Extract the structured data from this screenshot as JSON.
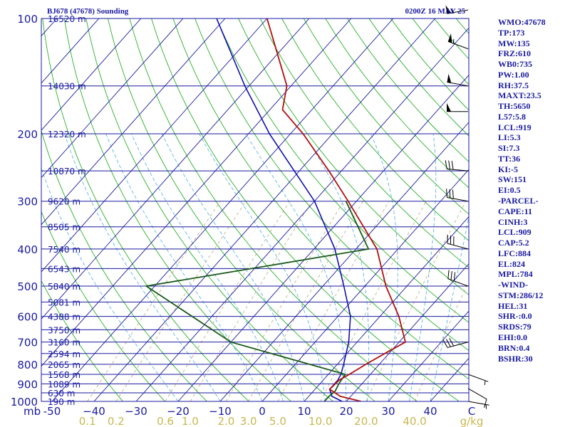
{
  "header": {
    "title": "BJ678 (47678) Sounding",
    "datetime": "0200Z 16 MAY 25"
  },
  "stats": [
    "WMO:47678",
    "TP:173",
    "MW:135",
    "FRZ:610",
    "WB0:735",
    "PW:1.00",
    "RH:37.5",
    "MAXT:23.5",
    "TH:5650",
    "L57:5.8",
    "LCL:919",
    "LI:5.3",
    "SI:7.3",
    "TT:36",
    "KI:-5",
    "SW:151",
    "EI:0.5",
    "-PARCEL-",
    "CAPE:11",
    "CINH:3",
    "LCL:909",
    "CAP:5.2",
    "LFC:884",
    "EL:824",
    "MPL:784",
    "-WIND-",
    "STM:286/12",
    "HEL:31",
    "SHR-:0.0",
    "SRDS:79",
    "EHI:0.0",
    "BRN:0.4",
    "BSHR:30"
  ],
  "colors": {
    "isobar": "#1a1aa0",
    "frame": "#1a1aa0",
    "isotherm": "#1a1aa0",
    "dry_adiabat": "#28b028",
    "moist_adiabat": "#5fb4e8",
    "mixing_ratio": "#b8a878",
    "temperature": "#b01010",
    "dewpoint": "#1a5a1a",
    "wetbulb": "#1010b0",
    "wind_barb": "#000000"
  },
  "chart_data": {
    "type": "skew-t log-p",
    "title": "BJ678 (47678) Sounding",
    "pressure_axis_unit": "mb",
    "pressure_ticks": [
      100,
      200,
      300,
      400,
      500,
      600,
      700,
      800,
      900,
      1000
    ],
    "pressure_tick_labels": [
      "100",
      "200",
      "300",
      "400",
      "500",
      "600",
      "700",
      "800",
      "900",
      "1000"
    ],
    "height_labels": [
      {
        "p": 100,
        "label": "16520 m"
      },
      {
        "p": 150,
        "label": "14030 m"
      },
      {
        "p": 200,
        "label": "12320 m"
      },
      {
        "p": 250,
        "label": "10870 m"
      },
      {
        "p": 300,
        "label": "9620 m"
      },
      {
        "p": 350,
        "label": "8505 m"
      },
      {
        "p": 400,
        "label": "7540 m"
      },
      {
        "p": 450,
        "label": "6543 m"
      },
      {
        "p": 500,
        "label": "5840 m"
      },
      {
        "p": 550,
        "label": "5081 m"
      },
      {
        "p": 600,
        "label": "4388 m"
      },
      {
        "p": 650,
        "label": "3750 m"
      },
      {
        "p": 700,
        "label": "3160 m"
      },
      {
        "p": 750,
        "label": "2594 m"
      },
      {
        "p": 800,
        "label": "2065 m"
      },
      {
        "p": 850,
        "label": "1568 m"
      },
      {
        "p": 900,
        "label": "1089 m"
      },
      {
        "p": 950,
        "label": "630 m"
      },
      {
        "p": 1000,
        "label": "190 m"
      }
    ],
    "temperature_ticks": [
      -50,
      -40,
      -30,
      -20,
      -10,
      0,
      10,
      20,
      30,
      40
    ],
    "temperature_tick_labels": [
      "-50",
      "−40",
      "−30",
      "−20",
      "−10",
      "0",
      "10",
      "20",
      "30",
      "40"
    ],
    "temperature_corner_label": "C",
    "mixing_ratio_ticks": [
      0.1,
      0.2,
      0.6,
      1.0,
      2.0,
      3.0,
      5.0,
      10.0,
      20.0,
      40.0
    ],
    "mixing_ratio_tick_labels": [
      "0.1",
      "0.2",
      "0.6",
      "1.0",
      "2.0",
      "3.0",
      "5.0",
      "10.0",
      "20.0",
      "40.0"
    ],
    "mixing_ratio_unit": "g/kg",
    "temperature_profile": [
      {
        "p": 1000,
        "t": 23.5
      },
      {
        "p": 970,
        "t": 17.5
      },
      {
        "p": 930,
        "t": 13.5
      },
      {
        "p": 880,
        "t": 13.8
      },
      {
        "p": 850,
        "t": 15.0
      },
      {
        "p": 800,
        "t": 16.8
      },
      {
        "p": 750,
        "t": 19.0
      },
      {
        "p": 700,
        "t": 21.5
      },
      {
        "p": 600,
        "t": 14.5
      },
      {
        "p": 500,
        "t": 5.0
      },
      {
        "p": 400,
        "t": -5.0
      },
      {
        "p": 300,
        "t": -22.0
      },
      {
        "p": 250,
        "t": -33.0
      },
      {
        "p": 200,
        "t": -47.0
      },
      {
        "p": 173,
        "t": -57.0
      },
      {
        "p": 150,
        "t": -61.0
      },
      {
        "p": 100,
        "t": -80.0
      }
    ],
    "dewpoint_profile": [
      {
        "p": 1000,
        "t": 14.8
      },
      {
        "p": 970,
        "t": 14.8
      },
      {
        "p": 940,
        "t": 15.2
      },
      {
        "p": 900,
        "t": 14.5
      },
      {
        "p": 850,
        "t": 14.0
      },
      {
        "p": 700,
        "t": -20.0
      },
      {
        "p": 500,
        "t": -52.0
      },
      {
        "p": 400,
        "t": -7.0
      },
      {
        "p": 300,
        "t": -22.5
      }
    ],
    "wetbulb_profile": [
      {
        "p": 1000,
        "t": 19.0
      },
      {
        "p": 970,
        "t": 15.5
      },
      {
        "p": 930,
        "t": 13.5
      },
      {
        "p": 880,
        "t": 13.5
      },
      {
        "p": 850,
        "t": 13.0
      },
      {
        "p": 800,
        "t": 11.5
      },
      {
        "p": 700,
        "t": 8.0
      },
      {
        "p": 600,
        "t": 3.0
      },
      {
        "p": 500,
        "t": -5.0
      },
      {
        "p": 400,
        "t": -15.0
      },
      {
        "p": 300,
        "t": -30.0
      },
      {
        "p": 200,
        "t": -55.0
      },
      {
        "p": 150,
        "t": -71.0
      },
      {
        "p": 100,
        "t": -92.0
      }
    ],
    "wind_barbs": [
      {
        "p": 95,
        "dir": 260,
        "speed_kt": 55
      },
      {
        "p": 120,
        "dir": 290,
        "speed_kt": 55
      },
      {
        "p": 150,
        "dir": 280,
        "speed_kt": 50
      },
      {
        "p": 175,
        "dir": 270,
        "speed_kt": 50
      },
      {
        "p": 250,
        "dir": 275,
        "speed_kt": 30
      },
      {
        "p": 300,
        "dir": 280,
        "speed_kt": 30
      },
      {
        "p": 400,
        "dir": 285,
        "speed_kt": 30
      },
      {
        "p": 500,
        "dir": 290,
        "speed_kt": 30
      },
      {
        "p": 700,
        "dir": 255,
        "speed_kt": 30
      },
      {
        "p": 850,
        "dir": 110,
        "speed_kt": 5
      },
      {
        "p": 925,
        "dir": 120,
        "speed_kt": 10
      },
      {
        "p": 1000,
        "dir": 100,
        "speed_kt": 5
      }
    ]
  }
}
